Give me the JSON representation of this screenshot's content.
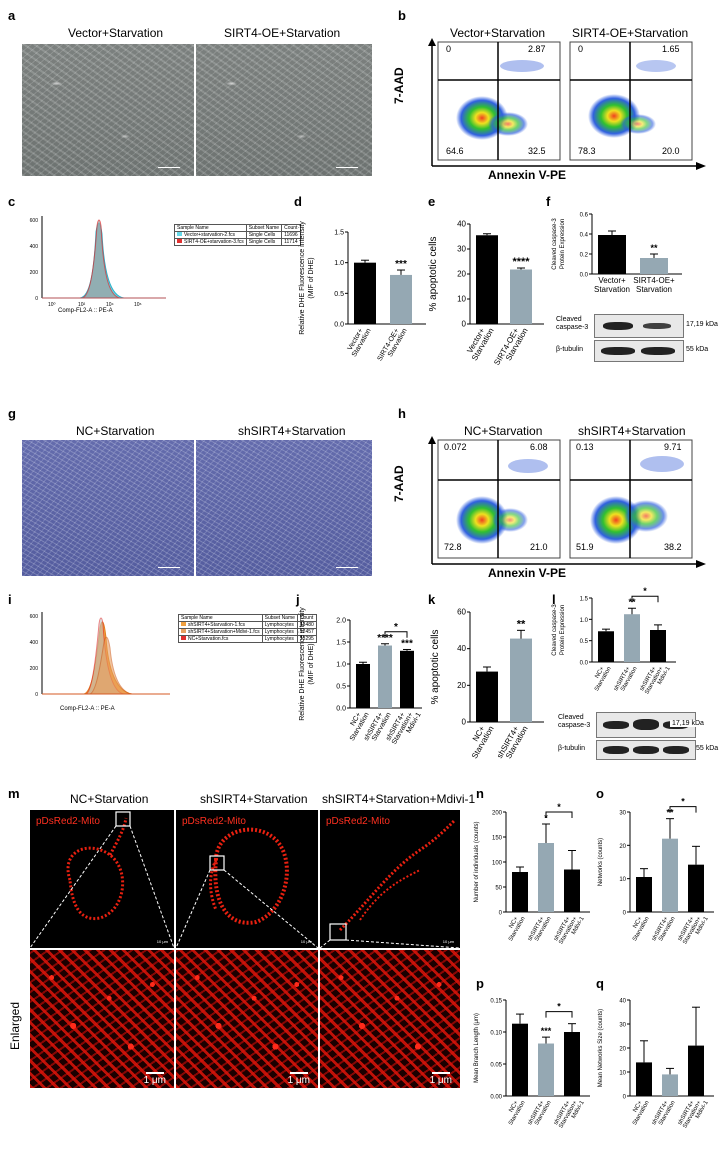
{
  "panels": {
    "a": "a",
    "b": "b",
    "c": "c",
    "d": "d",
    "e": "e",
    "f": "f",
    "g": "g",
    "h": "h",
    "i": "i",
    "j": "j",
    "k": "k",
    "l": "l",
    "m": "m",
    "n": "n",
    "o": "o",
    "p": "p",
    "q": "q"
  },
  "a": {
    "left": "Vector+Starvation",
    "right": "SIRT4-OE+Starvation"
  },
  "b": {
    "left": "Vector+Starvation",
    "right": "SIRT4-OE+Starvation",
    "ylabel": "7-AAD",
    "xlabel": "Annexin V-PE",
    "left_q": {
      "ul": "0",
      "ur": "2.87",
      "ll": "64.6",
      "lr": "32.5"
    },
    "right_q": {
      "ul": "0",
      "ur": "1.65",
      "ll": "78.3",
      "lr": "20.0"
    }
  },
  "c": {
    "xlabel": "Comp-FL2-A :: PE-A",
    "h_name": "Sample Name",
    "h_sub": "Subset Name",
    "h_count": "Count",
    "r1": {
      "name": "Vector+starvation-2.fcs",
      "sub": "Single Cells",
      "count": "11696"
    },
    "r2": {
      "name": "SIRT4-OE+starvation-3.fcs",
      "sub": "Single Cells",
      "count": "11714"
    },
    "yticks": [
      "0",
      "200",
      "400",
      "600"
    ],
    "xticks": [
      "10⁰",
      "10²",
      "10⁴",
      "10⁶"
    ]
  },
  "d": {
    "ylabel": "Relative DHE Fluorescence intensity",
    "ylabel2": "(MIF of DHE)",
    "sig": "***",
    "yticks": [
      "0.0",
      "0.5",
      "1.0",
      "1.5"
    ],
    "cat1a": "Vector+",
    "cat1b": "Starvation",
    "cat2a": "SIRT4-OE+",
    "cat2b": "Starvation"
  },
  "e": {
    "ylabel": "% apoptotic cells",
    "sig": "****",
    "yticks": [
      "0",
      "10",
      "20",
      "30",
      "40"
    ],
    "cat1a": "Vector+",
    "cat1b": "Starvation",
    "cat2a": "SIRT4-OE+",
    "cat2b": "Starvation"
  },
  "f": {
    "ylabel": "Cleaved caspase-3",
    "ylabel2": "Protein Expression",
    "sig": "**",
    "yticks": [
      "0.0",
      "0.2",
      "0.4",
      "0.6"
    ],
    "cat1a": "Vector+",
    "cat1b": "Starvation",
    "cat2a": "SIRT4-OE+",
    "cat2b": "Starvation",
    "blot1": "Cleaved",
    "blot1b": "caspase-3",
    "blot2": "β-tubulin",
    "kda1": "17,19 kDa",
    "kda2": "55 kDa"
  },
  "g": {
    "left": "NC+Starvation",
    "right": "shSIRT4+Starvation"
  },
  "h": {
    "left": "NC+Starvation",
    "right": "shSIRT4+Starvation",
    "ylabel": "7-AAD",
    "xlabel": "Annexin V-PE",
    "left_q": {
      "ul": "0.072",
      "ur": "6.08",
      "ll": "72.8",
      "lr": "21.0"
    },
    "right_q": {
      "ul": "0.13",
      "ur": "9.71",
      "ll": "51.9",
      "lr": "38.2"
    }
  },
  "i": {
    "xlabel": "Comp-FL2-A :: PE-A",
    "h_name": "Sample Name",
    "h_sub": "Subset Name",
    "h_count": "Count",
    "r1": {
      "name": "shSIRT4+Starvation-1.fcs",
      "sub": "Lymphocytes",
      "count": "13480"
    },
    "r2": {
      "name": "shSIRT4+Starvation+Mdivi-1.fcs",
      "sub": "Lymphocytes",
      "count": "12457"
    },
    "r3": {
      "name": "NC+Starvation.fcs",
      "sub": "Lymphocytes",
      "count": "13295"
    },
    "yticks": [
      "0",
      "200",
      "400",
      "600"
    ]
  },
  "j": {
    "ylabel": "Relative DHE Fluorescence intensity",
    "ylabel2": "(MIF of DHE)",
    "sig1": "****",
    "sig2": "***",
    "sig3": "*",
    "yticks": [
      "0.0",
      "0.5",
      "1.0",
      "1.5",
      "2.0"
    ],
    "cat1a": "NC+",
    "cat1b": "Starvation",
    "cat2a": "shSIRT4+",
    "cat2b": "Starvation",
    "cat3a": "shSIRT4+",
    "cat3b": "Starvation+",
    "cat3c": "Mdivi-1"
  },
  "k": {
    "ylabel": "% apoptotic cells",
    "sig": "**",
    "yticks": [
      "0",
      "20",
      "40",
      "60"
    ],
    "cat1a": "NC+",
    "cat1b": "Starvation",
    "cat2a": "shSIRT4+",
    "cat2b": "Starvation"
  },
  "l": {
    "ylabel": "Cleaved caspase-3",
    "ylabel2": "Protein Expression",
    "sig1": "**",
    "sig2": "*",
    "yticks": [
      "0.0",
      "0.5",
      "1.0",
      "1.5"
    ],
    "cat1a": "NC+",
    "cat1b": "Starvation",
    "cat2a": "shSIRT4+",
    "cat2b": "Starvation",
    "cat3a": "shSIRT4+",
    "cat3b": "Starvation+",
    "cat3c": "Mdivi-1",
    "blot1": "Cleaved",
    "blot1b": "caspase-3",
    "blot2": "β-tubulin",
    "kda1": "17,19 kDa",
    "kda2": "55 kDa"
  },
  "m": {
    "t1": "NC+Starvation",
    "t2": "shSIRT4+Starvation",
    "t3": "shSIRT4+Starvation+Mdivi-1",
    "probe": "pDsRed2-Mito",
    "enlarged": "Enlarged",
    "scale": "1 μm",
    "scale_small": "10 μm"
  },
  "n": {
    "ylabel": "Number of individuals (counts)",
    "sig1": "*",
    "sig2": "*",
    "yticks": [
      "0",
      "50",
      "100",
      "150",
      "200"
    ]
  },
  "o": {
    "ylabel": "Networks (counts)",
    "sig1": "**",
    "sig2": "*",
    "yticks": [
      "0",
      "10",
      "20",
      "30"
    ]
  },
  "p": {
    "ylabel": "Mean Branch Length (μm)",
    "sig1": "***",
    "sig2": "*",
    "yticks": [
      "0.00",
      "0.05",
      "0.10",
      "0.15"
    ]
  },
  "q": {
    "ylabel": "Mean Networks Size (counts)",
    "yticks": [
      "0",
      "10",
      "20",
      "30",
      "40"
    ]
  },
  "cats3": {
    "c1a": "NC+",
    "c1b": "Starvation",
    "c2a": "shSIRT4+",
    "c2b": "Starvation",
    "c3a": "shSIRT4+",
    "c3b": "Starvation+",
    "c3c": "Mdivi-1"
  },
  "chart_data": [
    {
      "id": "d",
      "type": "bar",
      "categories": [
        "Vector+ Starvation",
        "SIRT4-OE+ Starvation"
      ],
      "values": [
        1.0,
        0.8
      ],
      "errors": [
        0.04,
        0.08
      ],
      "ylim": [
        0,
        1.5
      ],
      "colors": [
        "#000000",
        "#95a8b3"
      ]
    },
    {
      "id": "e",
      "type": "bar",
      "categories": [
        "Vector+ Starvation",
        "SIRT4-OE+ Starvation"
      ],
      "values": [
        35.5,
        21.8
      ],
      "errors": [
        0.6,
        0.6
      ],
      "ylim": [
        0,
        40
      ],
      "colors": [
        "#000000",
        "#95a8b3"
      ]
    },
    {
      "id": "f",
      "type": "bar",
      "categories": [
        "Vector+ Starvation",
        "SIRT4-OE+ Starvation"
      ],
      "values": [
        0.39,
        0.16
      ],
      "errors": [
        0.04,
        0.04
      ],
      "ylim": [
        0,
        0.6
      ],
      "colors": [
        "#000000",
        "#95a8b3"
      ]
    },
    {
      "id": "j",
      "type": "bar",
      "categories": [
        "NC+ Starvation",
        "shSIRT4+ Starvation",
        "shSIRT4+ Starvation+ Mdivi-1"
      ],
      "values": [
        1.0,
        1.42,
        1.3
      ],
      "errors": [
        0.04,
        0.04,
        0.03
      ],
      "ylim": [
        0,
        2.0
      ],
      "colors": [
        "#000000",
        "#95a8b3",
        "#000000"
      ]
    },
    {
      "id": "k",
      "type": "bar",
      "categories": [
        "NC+ Starvation",
        "shSIRT4+ Starvation"
      ],
      "values": [
        27.5,
        45.5
      ],
      "errors": [
        2.5,
        4.5
      ],
      "ylim": [
        0,
        60
      ],
      "colors": [
        "#000000",
        "#95a8b3"
      ]
    },
    {
      "id": "l",
      "type": "bar",
      "categories": [
        "NC+ Starvation",
        "shSIRT4+ Starvation",
        "shSIRT4+ Starvation+ Mdivi-1"
      ],
      "values": [
        0.72,
        1.12,
        0.75
      ],
      "errors": [
        0.05,
        0.14,
        0.12
      ],
      "ylim": [
        0,
        1.5
      ],
      "colors": [
        "#000000",
        "#95a8b3",
        "#000000"
      ]
    },
    {
      "id": "n",
      "type": "bar",
      "categories": [
        "NC+ Starvation",
        "shSIRT4+ Starvation",
        "shSIRT4+ Starvation+ Mdivi-1"
      ],
      "values": [
        80,
        138,
        85
      ],
      "errors": [
        10,
        38,
        38
      ],
      "ylim": [
        0,
        200
      ],
      "colors": [
        "#000000",
        "#95a8b3",
        "#000000"
      ]
    },
    {
      "id": "o",
      "type": "bar",
      "categories": [
        "NC+ Starvation",
        "shSIRT4+ Starvation",
        "shSIRT4+ Starvation+ Mdivi-1"
      ],
      "values": [
        10.5,
        22,
        14.2
      ],
      "errors": [
        2.5,
        6,
        5.5
      ],
      "ylim": [
        0,
        30
      ],
      "colors": [
        "#000000",
        "#95a8b3",
        "#000000"
      ]
    },
    {
      "id": "p",
      "type": "bar",
      "categories": [
        "NC+ Starvation",
        "shSIRT4+ Starvation",
        "shSIRT4+ Starvation+ Mdivi-1"
      ],
      "values": [
        0.113,
        0.082,
        0.1
      ],
      "errors": [
        0.015,
        0.01,
        0.013
      ],
      "ylim": [
        0,
        0.15
      ],
      "colors": [
        "#000000",
        "#95a8b3",
        "#000000"
      ]
    },
    {
      "id": "q",
      "type": "bar",
      "categories": [
        "NC+ Starvation",
        "shSIRT4+ Starvation",
        "shSIRT4+ Starvation+ Mdivi-1"
      ],
      "values": [
        14,
        9,
        21
      ],
      "errors": [
        9,
        2.5,
        16
      ],
      "ylim": [
        0,
        40
      ],
      "colors": [
        "#000000",
        "#95a8b3",
        "#000000"
      ]
    }
  ]
}
